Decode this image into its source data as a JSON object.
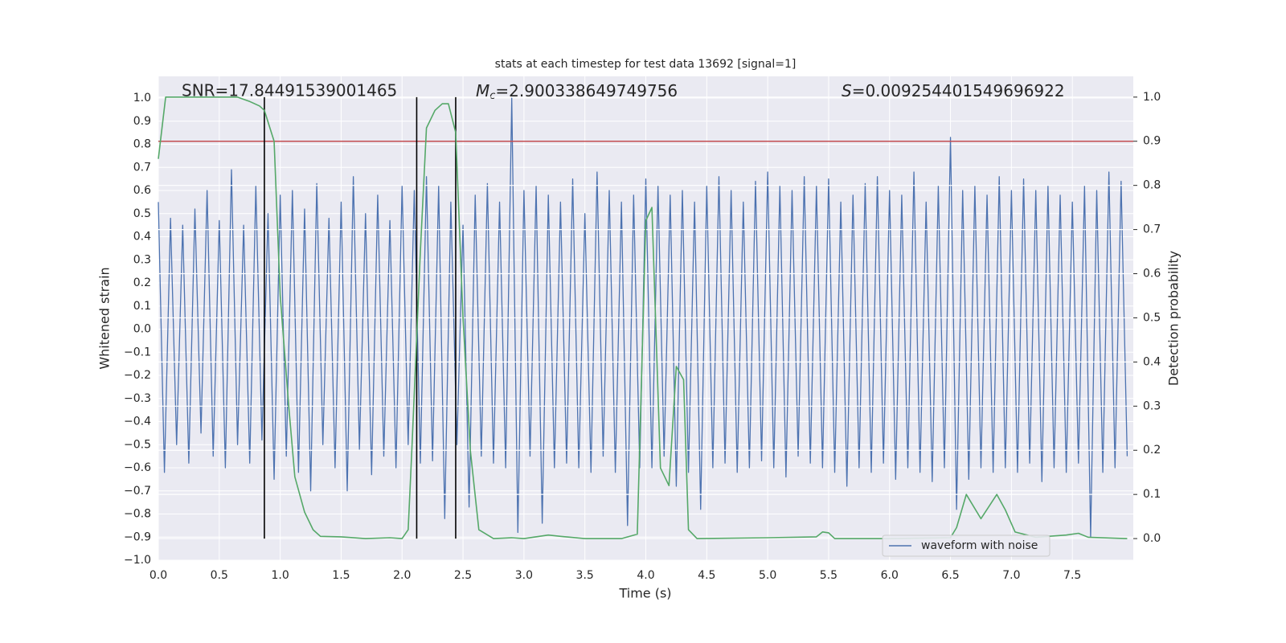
{
  "chart_data": {
    "type": "line",
    "title": "stats at each timestep for test data 13692 [signal=1]",
    "x_label": "Time (s)",
    "y_label": "Whitened strain",
    "y2_label": "Detection probability",
    "annotations": [
      {
        "text": "SNR=17.84491539001465"
      },
      {
        "symbol": "M",
        "subscript": "c",
        "text": "=2.900338649749756"
      },
      {
        "symbol": "S",
        "text": "=0.009254401549696922"
      }
    ],
    "xlim": [
      0,
      8.0
    ],
    "ylim": [
      -1.0,
      1.094
    ],
    "y2lim": [
      -0.049,
      1.047
    ],
    "xticks": [
      {
        "value": 0,
        "label": "0.0"
      },
      0.5,
      {
        "value": 1,
        "label": "1.0"
      },
      1.5,
      {
        "value": 2,
        "label": "2.0"
      },
      2.5,
      {
        "value": 3,
        "label": "3.0"
      },
      3.5,
      {
        "value": 4,
        "label": "4.0"
      },
      4.5,
      {
        "value": 5,
        "label": "5.0"
      },
      5.5,
      {
        "value": 6,
        "label": "6.0"
      },
      6.5,
      {
        "value": 7,
        "label": "7.0"
      },
      7.5
    ],
    "yticks": [
      {
        "value": -1.0,
        "label": "−1.0"
      },
      {
        "value": -0.9,
        "label": "−0.9"
      },
      {
        "value": -0.8,
        "label": "−0.8"
      },
      {
        "value": -0.7,
        "label": "−0.7"
      },
      {
        "value": -0.6,
        "label": "−0.6"
      },
      {
        "value": -0.5,
        "label": "−0.5"
      },
      {
        "value": -0.4,
        "label": "−0.4"
      },
      {
        "value": -0.3,
        "label": "−0.3"
      },
      {
        "value": -0.2,
        "label": "−0.2"
      },
      {
        "value": -0.1,
        "label": "−0.1"
      },
      {
        "value": 0,
        "label": "0.0"
      },
      0.1,
      0.2,
      0.3,
      0.4,
      0.5,
      0.6,
      0.7,
      0.8,
      0.9,
      {
        "value": 1,
        "label": "1.0"
      }
    ],
    "y2ticks": [
      {
        "value": 0,
        "label": "0.0"
      },
      0.1,
      0.2,
      0.3,
      0.4,
      0.5,
      0.6,
      0.7,
      0.8,
      0.9,
      {
        "value": 1,
        "label": "1.0"
      }
    ],
    "grid": true,
    "legend": "lower right",
    "hlines": [
      {
        "value": 0.9,
        "axis": "y2",
        "color": "#c44e52"
      }
    ],
    "vlines": {
      "x": [
        0.87,
        2.12,
        2.44
      ],
      "ymin": 0,
      "ymax": 1,
      "axis": "y2",
      "color": "#000000"
    },
    "series": [
      {
        "name": "waveform with noise",
        "color": "#4c72b0",
        "x": [
          0,
          0.05,
          0.1,
          0.15,
          0.2,
          0.25,
          0.3,
          0.35,
          0.4,
          0.45,
          0.5,
          0.55,
          0.6,
          0.65,
          0.7,
          0.75,
          0.8,
          0.85,
          0.9,
          0.95,
          1.0,
          1.05,
          1.1,
          1.15,
          1.2,
          1.25,
          1.3,
          1.35,
          1.4,
          1.45,
          1.5,
          1.55,
          1.6,
          1.65,
          1.7,
          1.75,
          1.8,
          1.85,
          1.9,
          1.95,
          2.0,
          2.05,
          2.1,
          2.15,
          2.2,
          2.25,
          2.3,
          2.35,
          2.4,
          2.45,
          2.5,
          2.55,
          2.6,
          2.65,
          2.7,
          2.75,
          2.8,
          2.85,
          2.9,
          2.95,
          3.0,
          3.05,
          3.1,
          3.15,
          3.2,
          3.25,
          3.3,
          3.35,
          3.4,
          3.45,
          3.5,
          3.55,
          3.6,
          3.65,
          3.7,
          3.75,
          3.8,
          3.85,
          3.9,
          3.95,
          4.0,
          4.05,
          4.1,
          4.15,
          4.2,
          4.25,
          4.3,
          4.35,
          4.4,
          4.45,
          4.5,
          4.55,
          4.6,
          4.65,
          4.7,
          4.75,
          4.8,
          4.85,
          4.9,
          4.95,
          5.0,
          5.05,
          5.1,
          5.15,
          5.2,
          5.25,
          5.3,
          5.35,
          5.4,
          5.45,
          5.5,
          5.55,
          5.6,
          5.65,
          5.7,
          5.75,
          5.8,
          5.85,
          5.9,
          5.95,
          6.0,
          6.05,
          6.1,
          6.15,
          6.2,
          6.25,
          6.3,
          6.35,
          6.4,
          6.45,
          6.5,
          6.55,
          6.6,
          6.65,
          6.7,
          6.75,
          6.8,
          6.85,
          6.9,
          6.95,
          7.0,
          7.05,
          7.1,
          7.15,
          7.2,
          7.25,
          7.3,
          7.35,
          7.4,
          7.45,
          7.5,
          7.55,
          7.6,
          7.65,
          7.7,
          7.75,
          7.8,
          7.85,
          7.9,
          7.95
        ],
        "values": [
          0.55,
          -0.62,
          0.48,
          -0.5,
          0.45,
          -0.58,
          0.52,
          -0.45,
          0.6,
          -0.55,
          0.47,
          -0.6,
          0.69,
          -0.5,
          0.45,
          -0.58,
          0.62,
          -0.48,
          0.5,
          -0.65,
          0.58,
          -0.55,
          0.6,
          -0.62,
          0.52,
          -0.7,
          0.63,
          -0.5,
          0.48,
          -0.6,
          0.55,
          -0.7,
          0.66,
          -0.52,
          0.5,
          -0.63,
          0.58,
          -0.55,
          0.47,
          -0.6,
          0.62,
          -0.5,
          0.6,
          -0.58,
          0.66,
          -0.57,
          0.62,
          -0.82,
          0.55,
          -0.5,
          0.45,
          -0.77,
          0.58,
          -0.55,
          0.63,
          -0.58,
          0.55,
          -0.6,
          1.0,
          -0.88,
          0.6,
          -0.55,
          0.62,
          -0.84,
          0.58,
          -0.6,
          0.55,
          -0.58,
          0.65,
          -0.6,
          0.5,
          -0.62,
          0.68,
          -0.55,
          0.6,
          -0.62,
          0.55,
          -0.85,
          0.58,
          -0.6,
          0.65,
          -0.6,
          0.62,
          -0.55,
          0.58,
          -0.68,
          0.6,
          -0.62,
          0.55,
          -0.78,
          0.62,
          -0.6,
          0.66,
          -0.58,
          0.6,
          -0.62,
          0.55,
          -0.6,
          0.64,
          -0.57,
          0.68,
          -0.6,
          0.62,
          -0.64,
          0.6,
          -0.55,
          0.66,
          -0.58,
          0.62,
          -0.6,
          0.65,
          -0.62,
          0.55,
          -0.68,
          0.58,
          -0.6,
          0.63,
          -0.62,
          0.66,
          -0.58,
          0.6,
          -0.65,
          0.58,
          -0.6,
          0.68,
          -0.62,
          0.55,
          -0.66,
          0.62,
          -0.6,
          0.83,
          -0.78,
          0.6,
          -0.65,
          0.62,
          -0.6,
          0.58,
          -0.62,
          0.66,
          -0.6,
          0.6,
          -0.62,
          0.65,
          -0.58,
          0.6,
          -0.66,
          0.62,
          -0.6,
          0.58,
          -0.62,
          0.55,
          -0.58,
          0.62,
          -0.9,
          0.6,
          -0.62,
          0.68,
          -0.6,
          0.64,
          -0.55
        ]
      },
      {
        "color": "#55a868",
        "axis": "y2",
        "x": [
          0,
          0.06,
          0.2,
          0.5,
          0.65,
          0.75,
          0.83,
          0.87,
          0.95,
          1.0,
          1.07,
          1.12,
          1.2,
          1.27,
          1.33,
          1.5,
          1.7,
          1.9,
          2.0,
          2.05,
          2.08,
          2.15,
          2.2,
          2.27,
          2.33,
          2.38,
          2.44,
          2.5,
          2.56,
          2.63,
          2.75,
          2.9,
          3.0,
          3.2,
          3.3,
          3.5,
          3.8,
          3.93,
          4.0,
          4.05,
          4.12,
          4.19,
          4.25,
          4.31,
          4.35,
          4.42,
          5.0,
          5.4,
          5.45,
          5.5,
          5.55,
          6.0,
          6.5,
          6.55,
          6.63,
          6.75,
          6.88,
          6.95,
          7.03,
          7.2,
          7.45,
          7.55,
          7.63,
          7.95
        ],
        "values": [
          0.86,
          1.0,
          1.0,
          1.0,
          1.0,
          0.99,
          0.98,
          0.97,
          0.9,
          0.55,
          0.3,
          0.14,
          0.06,
          0.02,
          0.005,
          0.004,
          0.0,
          0.002,
          0.0,
          0.02,
          0.2,
          0.65,
          0.93,
          0.97,
          0.985,
          0.985,
          0.92,
          0.5,
          0.2,
          0.02,
          0.0,
          0.002,
          0.0,
          0.008,
          0.005,
          0.0,
          0.0,
          0.01,
          0.72,
          0.75,
          0.16,
          0.12,
          0.39,
          0.36,
          0.02,
          0.0,
          0.002,
          0.004,
          0.015,
          0.013,
          0.0,
          0.0,
          0.002,
          0.025,
          0.1,
          0.045,
          0.1,
          0.065,
          0.015,
          0.003,
          0.008,
          0.012,
          0.003,
          0.0
        ]
      }
    ]
  }
}
